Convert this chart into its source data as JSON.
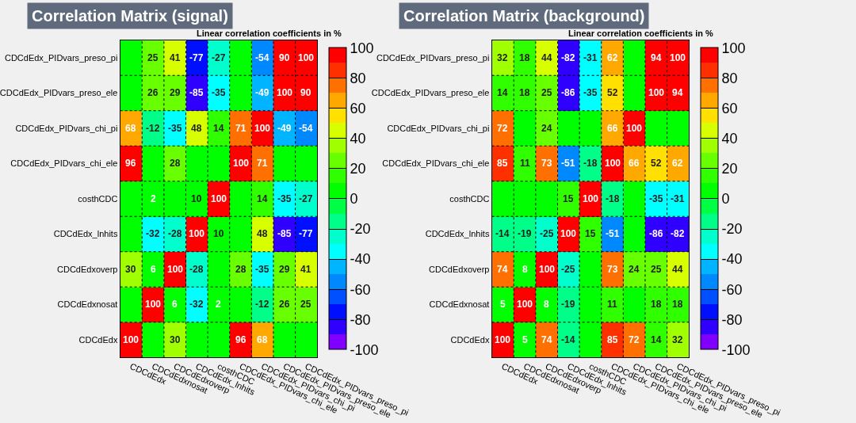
{
  "chart_data": [
    {
      "type": "heatmap",
      "title": "Correlation Matrix (signal)",
      "clabel": "Linear correlation coefficients in %",
      "grid": true,
      "categories": [
        "CDCdEdx",
        "CDCdEdxnosat",
        "CDCdEdxoverp",
        "CDCdEdx_lnhits",
        "costhCDC",
        "CDCdEdx_PIDvars_chi_ele",
        "CDCdEdx_PIDvars_chi_pi",
        "CDCdEdx_PIDvars_preso_ele",
        "CDCdEdx_PIDvars_preso_pi"
      ],
      "y_categories": [
        "CDCdEdx_PIDvars_preso_pi",
        "CDCdEdx_PIDvars_preso_ele",
        "CDCdEdx_PIDvars_chi_pi",
        "CDCdEdx_PIDvars_chi_ele",
        "costhCDC",
        "CDCdEdx_lnhits",
        "CDCdEdxoverp",
        "CDCdEdxnosat",
        "CDCdEdx"
      ],
      "cells": [
        [
          0,
          25,
          41,
          -77,
          -27,
          0,
          -54,
          90,
          100
        ],
        [
          0,
          26,
          29,
          -85,
          -35,
          0,
          -49,
          100,
          90
        ],
        [
          68,
          -12,
          -35,
          48,
          14,
          71,
          100,
          -49,
          -54
        ],
        [
          96,
          0,
          28,
          0,
          0,
          100,
          71,
          0,
          0
        ],
        [
          0,
          2,
          0,
          10,
          100,
          0,
          14,
          -35,
          -27
        ],
        [
          0,
          -32,
          -28,
          100,
          10,
          0,
          48,
          -85,
          -77
        ],
        [
          30,
          6,
          100,
          -28,
          0,
          28,
          -35,
          29,
          41
        ],
        [
          0,
          100,
          6,
          -32,
          2,
          0,
          -12,
          26,
          25
        ],
        [
          100,
          0,
          30,
          0,
          0,
          96,
          68,
          0,
          0
        ]
      ],
      "cell_labels": [
        [
          null,
          "25",
          "41",
          "-77",
          "-27",
          null,
          "-54",
          "90",
          "100"
        ],
        [
          null,
          "26",
          "29",
          "-85",
          "-35",
          null,
          "-49",
          "100",
          "90"
        ],
        [
          "68",
          "-12",
          "-35",
          "48",
          "14",
          "71",
          "100",
          "-49",
          "-54"
        ],
        [
          "96",
          null,
          "28",
          null,
          null,
          "100",
          "71",
          null,
          null
        ],
        [
          null,
          "2",
          null,
          "10",
          "100",
          null,
          "14",
          "-35",
          "-27"
        ],
        [
          null,
          "-32",
          "-28",
          "100",
          "10",
          null,
          "48",
          "-85",
          "-77"
        ],
        [
          "30",
          "6",
          "100",
          "-28",
          null,
          "28",
          "-35",
          "29",
          "41"
        ],
        [
          null,
          "100",
          "6",
          "-32",
          "2",
          null,
          "-12",
          "26",
          "25"
        ],
        [
          "100",
          null,
          "30",
          null,
          null,
          "96",
          "68",
          null,
          null
        ]
      ],
      "clim": [
        -100,
        100
      ],
      "cticks": [
        -100,
        -80,
        -60,
        -40,
        -20,
        0,
        20,
        40,
        60,
        80,
        100
      ]
    },
    {
      "type": "heatmap",
      "title": "Correlation Matrix (background)",
      "clabel": "Linear correlation coefficients in %",
      "grid": true,
      "categories": [
        "CDCdEdx",
        "CDCdEdxnosat",
        "CDCdEdxoverp",
        "CDCdEdx_lnhits",
        "costhCDC",
        "CDCdEdx_PIDvars_chi_ele",
        "CDCdEdx_PIDvars_chi_pi",
        "CDCdEdx_PIDvars_preso_ele",
        "CDCdEdx_PIDvars_preso_pi"
      ],
      "y_categories": [
        "CDCdEdx_PIDvars_preso_pi",
        "CDCdEdx_PIDvars_preso_ele",
        "CDCdEdx_PIDvars_chi_pi",
        "CDCdEdx_PIDvars_chi_ele",
        "costhCDC",
        "CDCdEdx_lnhits",
        "CDCdEdxoverp",
        "CDCdEdxnosat",
        "CDCdEdx"
      ],
      "cells": [
        [
          32,
          18,
          44,
          -82,
          -31,
          62,
          0,
          94,
          100
        ],
        [
          14,
          18,
          25,
          -86,
          -35,
          52,
          0,
          100,
          94
        ],
        [
          72,
          0,
          24,
          0,
          0,
          66,
          100,
          0,
          0
        ],
        [
          85,
          11,
          73,
          -51,
          -18,
          100,
          66,
          52,
          62
        ],
        [
          0,
          0,
          0,
          15,
          100,
          -18,
          0,
          -35,
          -31
        ],
        [
          -14,
          -19,
          -25,
          100,
          15,
          -51,
          0,
          -86,
          -82
        ],
        [
          74,
          8,
          100,
          -25,
          0,
          73,
          24,
          25,
          44
        ],
        [
          5,
          100,
          8,
          -19,
          0,
          11,
          0,
          18,
          18
        ],
        [
          100,
          5,
          74,
          -14,
          0,
          85,
          72,
          14,
          32
        ]
      ],
      "cell_labels": [
        [
          "32",
          "18",
          "44",
          "-82",
          "-31",
          "62",
          null,
          "94",
          "100"
        ],
        [
          "14",
          "18",
          "25",
          "-86",
          "-35",
          "52",
          null,
          "100",
          "94"
        ],
        [
          "72",
          null,
          "24",
          null,
          null,
          "66",
          "100",
          null,
          null
        ],
        [
          "85",
          "11",
          "73",
          "-51",
          "-18",
          "100",
          "66",
          "52",
          "62"
        ],
        [
          null,
          null,
          null,
          "15",
          "100",
          "-18",
          null,
          "-35",
          "-31"
        ],
        [
          "-14",
          "-19",
          "-25",
          "100",
          "15",
          "-51",
          null,
          "-86",
          "-82"
        ],
        [
          "74",
          "8",
          "100",
          "-25",
          null,
          "73",
          "24",
          "25",
          "44"
        ],
        [
          "5",
          "100",
          "8",
          "-19",
          null,
          "11",
          null,
          "18",
          "18"
        ],
        [
          "100",
          "5",
          "74",
          "-14",
          null,
          "85",
          "72",
          "14",
          "32"
        ]
      ],
      "clim": [
        -100,
        100
      ],
      "cticks": [
        -100,
        -80,
        -60,
        -40,
        -20,
        0,
        20,
        40,
        60,
        80,
        100
      ]
    }
  ]
}
